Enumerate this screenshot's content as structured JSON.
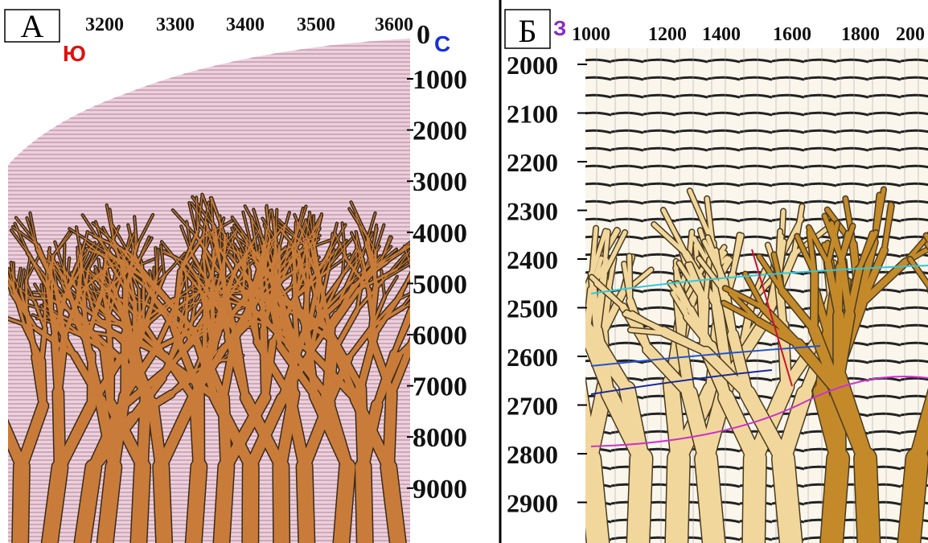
{
  "panel_a": {
    "label": "А",
    "left_direction": "Ю",
    "right_direction": "С",
    "top_axis": [
      "3200",
      "3300",
      "3400",
      "3500",
      "3600"
    ],
    "right_axis": [
      "0",
      "1000",
      "2000",
      "3000",
      "4000",
      "5000",
      "6000",
      "7000",
      "8000",
      "9000"
    ]
  },
  "panel_b": {
    "label": "Б",
    "direction": "З",
    "top_axis": [
      "1000",
      "1200",
      "1400",
      "1600",
      "1800",
      "200"
    ],
    "left_axis": [
      "2000",
      "2100",
      "2200",
      "2300",
      "2400",
      "2500",
      "2600",
      "2700",
      "2800",
      "2900"
    ]
  }
}
